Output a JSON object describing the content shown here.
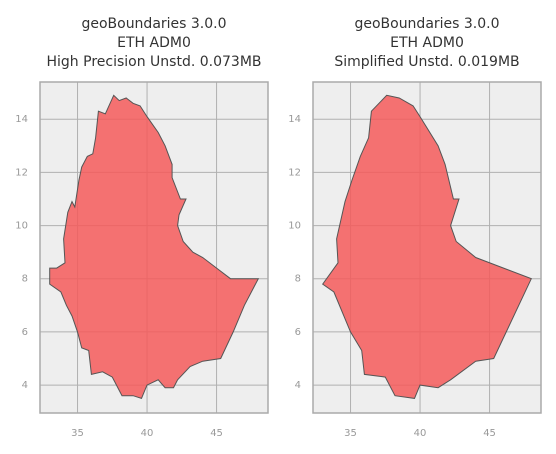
{
  "chart_data": [
    {
      "type": "polygon",
      "title": [
        "geoBoundaries 3.0.0",
        "ETH ADM0",
        "High Precision Unstd. 0.073MB"
      ],
      "x": [
        36.5,
        37.0,
        37.6,
        38.0,
        38.5,
        39.0,
        39.5,
        40.0,
        40.8,
        41.3,
        41.8,
        41.8,
        42.4,
        42.8,
        42.3,
        42.2,
        42.6,
        43.3,
        44.0,
        45.0,
        46.0,
        48.0,
        47.0,
        46.2,
        45.3,
        44.0,
        43.1,
        42.2,
        41.9,
        41.3,
        40.8,
        40.0,
        39.6,
        39.0,
        38.2,
        37.5,
        36.8,
        36.0,
        35.8,
        35.3,
        35.0,
        34.6,
        34.2,
        33.8,
        33.0,
        33.0,
        33.5,
        34.1,
        34.0,
        34.3,
        34.6,
        34.8,
        35.1,
        35.3,
        35.7,
        36.1,
        36.3
      ],
      "values": [
        14.3,
        14.2,
        14.9,
        14.7,
        14.8,
        14.6,
        14.5,
        14.1,
        13.5,
        13.0,
        12.3,
        11.8,
        11.0,
        11.0,
        10.4,
        10.0,
        9.4,
        9.0,
        8.8,
        8.4,
        8.0,
        8.0,
        7.0,
        6.0,
        5.0,
        4.9,
        4.7,
        4.2,
        3.9,
        3.9,
        4.2,
        4.0,
        3.5,
        3.6,
        3.6,
        4.3,
        4.5,
        4.4,
        5.3,
        5.4,
        6.0,
        6.6,
        7.0,
        7.5,
        7.8,
        8.4,
        8.4,
        8.6,
        9.5,
        10.5,
        10.9,
        10.7,
        11.7,
        12.2,
        12.6,
        12.7,
        13.3
      ],
      "color": "#f45b5b",
      "xlim": [
        32.3,
        48.7
      ],
      "ylim": [
        2.95,
        15.4
      ],
      "xticks": [
        35,
        40,
        45
      ],
      "yticks": [
        4,
        6,
        8,
        10,
        12,
        14
      ],
      "grid": true
    },
    {
      "type": "polygon",
      "title": [
        "geoBoundaries 3.0.0",
        "ETH ADM0",
        "Simplified Unstd. 0.019MB"
      ],
      "x": [
        36.5,
        37.6,
        38.5,
        39.5,
        40.0,
        41.3,
        41.8,
        42.4,
        42.8,
        42.2,
        42.6,
        44.0,
        48.0,
        45.3,
        44.0,
        42.2,
        41.3,
        40.0,
        39.6,
        38.2,
        37.5,
        36.0,
        35.8,
        35.0,
        33.8,
        33.0,
        34.1,
        34.0,
        34.6,
        35.1,
        35.7,
        36.3
      ],
      "values": [
        14.3,
        14.9,
        14.8,
        14.5,
        14.1,
        13.0,
        12.3,
        11.0,
        11.0,
        10.0,
        9.4,
        8.8,
        8.0,
        5.0,
        4.9,
        4.2,
        3.9,
        4.0,
        3.5,
        3.6,
        4.3,
        4.4,
        5.3,
        6.0,
        7.5,
        7.8,
        8.6,
        9.5,
        10.9,
        11.7,
        12.6,
        13.3
      ],
      "color": "#f45b5b",
      "xlim": [
        32.3,
        48.7
      ],
      "ylim": [
        2.95,
        15.4
      ],
      "xticks": [
        35,
        40,
        45
      ],
      "yticks": [
        4,
        6,
        8,
        10,
        12,
        14
      ],
      "grid": true
    }
  ]
}
